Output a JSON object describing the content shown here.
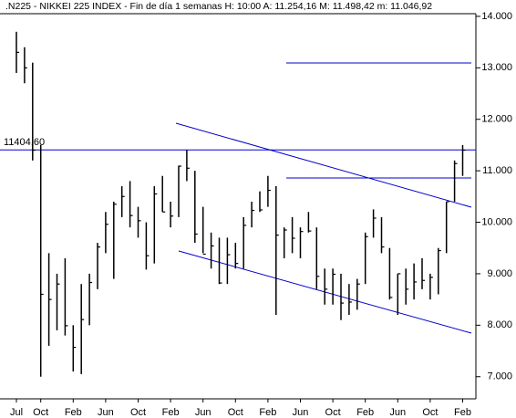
{
  "chart_data": {
    "type": "ohlc",
    "title": ".N225 - NIKKEI 225 INDEX - Fin de día 1 semanas H: 10:00 A: 11.254,16 M: 11.498,42 m: 11.046,92",
    "categories": [
      "Jul",
      null,
      null,
      "Oct",
      null,
      null,
      null,
      "Feb",
      null,
      null,
      null,
      "Jun",
      null,
      null,
      null,
      "Oct",
      null,
      null,
      null,
      "Feb",
      null,
      null,
      null,
      "Jun",
      null,
      null,
      null,
      "Oct",
      null,
      null,
      null,
      "Feb",
      null,
      null,
      null,
      "Jun",
      null,
      null,
      null,
      "Oct",
      null,
      null,
      null,
      "Feb",
      null,
      null,
      null,
      "Jun",
      null,
      null,
      null,
      "Oct",
      null,
      null,
      null,
      "Feb"
    ],
    "high": [
      13700,
      13400,
      13100,
      11500,
      9400,
      9000,
      9300,
      8000,
      8800,
      9000,
      9600,
      10200,
      10400,
      10700,
      10800,
      10300,
      10000,
      10700,
      10900,
      10400,
      11100,
      11400,
      11000,
      10300,
      9800,
      9700,
      9700,
      9600,
      10100,
      10400,
      10600,
      10900,
      10700,
      9900,
      10100,
      9900,
      10200,
      9900,
      9100,
      9100,
      9000,
      8800,
      8900,
      9800,
      10250,
      10100,
      9500,
      9000,
      9100,
      9200,
      9300,
      9000,
      9500,
      10400,
      11200,
      11500
    ],
    "low": [
      12900,
      12700,
      11200,
      7000,
      7600,
      7900,
      7800,
      7100,
      7050,
      8000,
      8700,
      9400,
      8900,
      10100,
      9900,
      9700,
      9080,
      9200,
      10200,
      9900,
      10100,
      10800,
      9600,
      9400,
      9100,
      8800,
      8800,
      9100,
      9100,
      9900,
      10200,
      10300,
      8200,
      9300,
      9400,
      9300,
      9800,
      8700,
      8400,
      8400,
      8100,
      8200,
      8300,
      8800,
      9700,
      9400,
      8500,
      8200,
      8400,
      8500,
      8700,
      8500,
      8600,
      9400,
      10400,
      10900
    ],
    "close": [
      13300,
      13000,
      11400,
      8600,
      8500,
      8800,
      7990,
      7570,
      8110,
      8830,
      9520,
      9960,
      10350,
      10500,
      10130,
      10030,
      9350,
      10550,
      10200,
      10120,
      11090,
      11050,
      9770,
      9380,
      9540,
      8820,
      9370,
      9200,
      9940,
      10230,
      10240,
      10620,
      9750,
      9850,
      9690,
      9820,
      9830,
      8950,
      8700,
      8990,
      8430,
      8450,
      8800,
      9720,
      10080,
      9520,
      8540,
      9000,
      8700,
      8840,
      8870,
      8930,
      9450,
      10400,
      11140,
      11400
    ],
    "color": "#000000",
    "line_color": "#0000cc",
    "reference_line": {
      "value": 11404.6,
      "label": "11404,60"
    },
    "ylim": [
      6570,
      14140
    ],
    "yticks": [
      {
        "value": 7000,
        "label": "7.000"
      },
      {
        "value": 8000,
        "label": "8.000"
      },
      {
        "value": 9000,
        "label": "9.000"
      },
      {
        "value": 10000,
        "label": "10.000"
      },
      {
        "value": 11000,
        "label": "11.000"
      },
      {
        "value": 12000,
        "label": "12.000"
      },
      {
        "value": 13000,
        "label": "13.000"
      },
      {
        "value": 14000,
        "label": "14.000"
      }
    ]
  }
}
